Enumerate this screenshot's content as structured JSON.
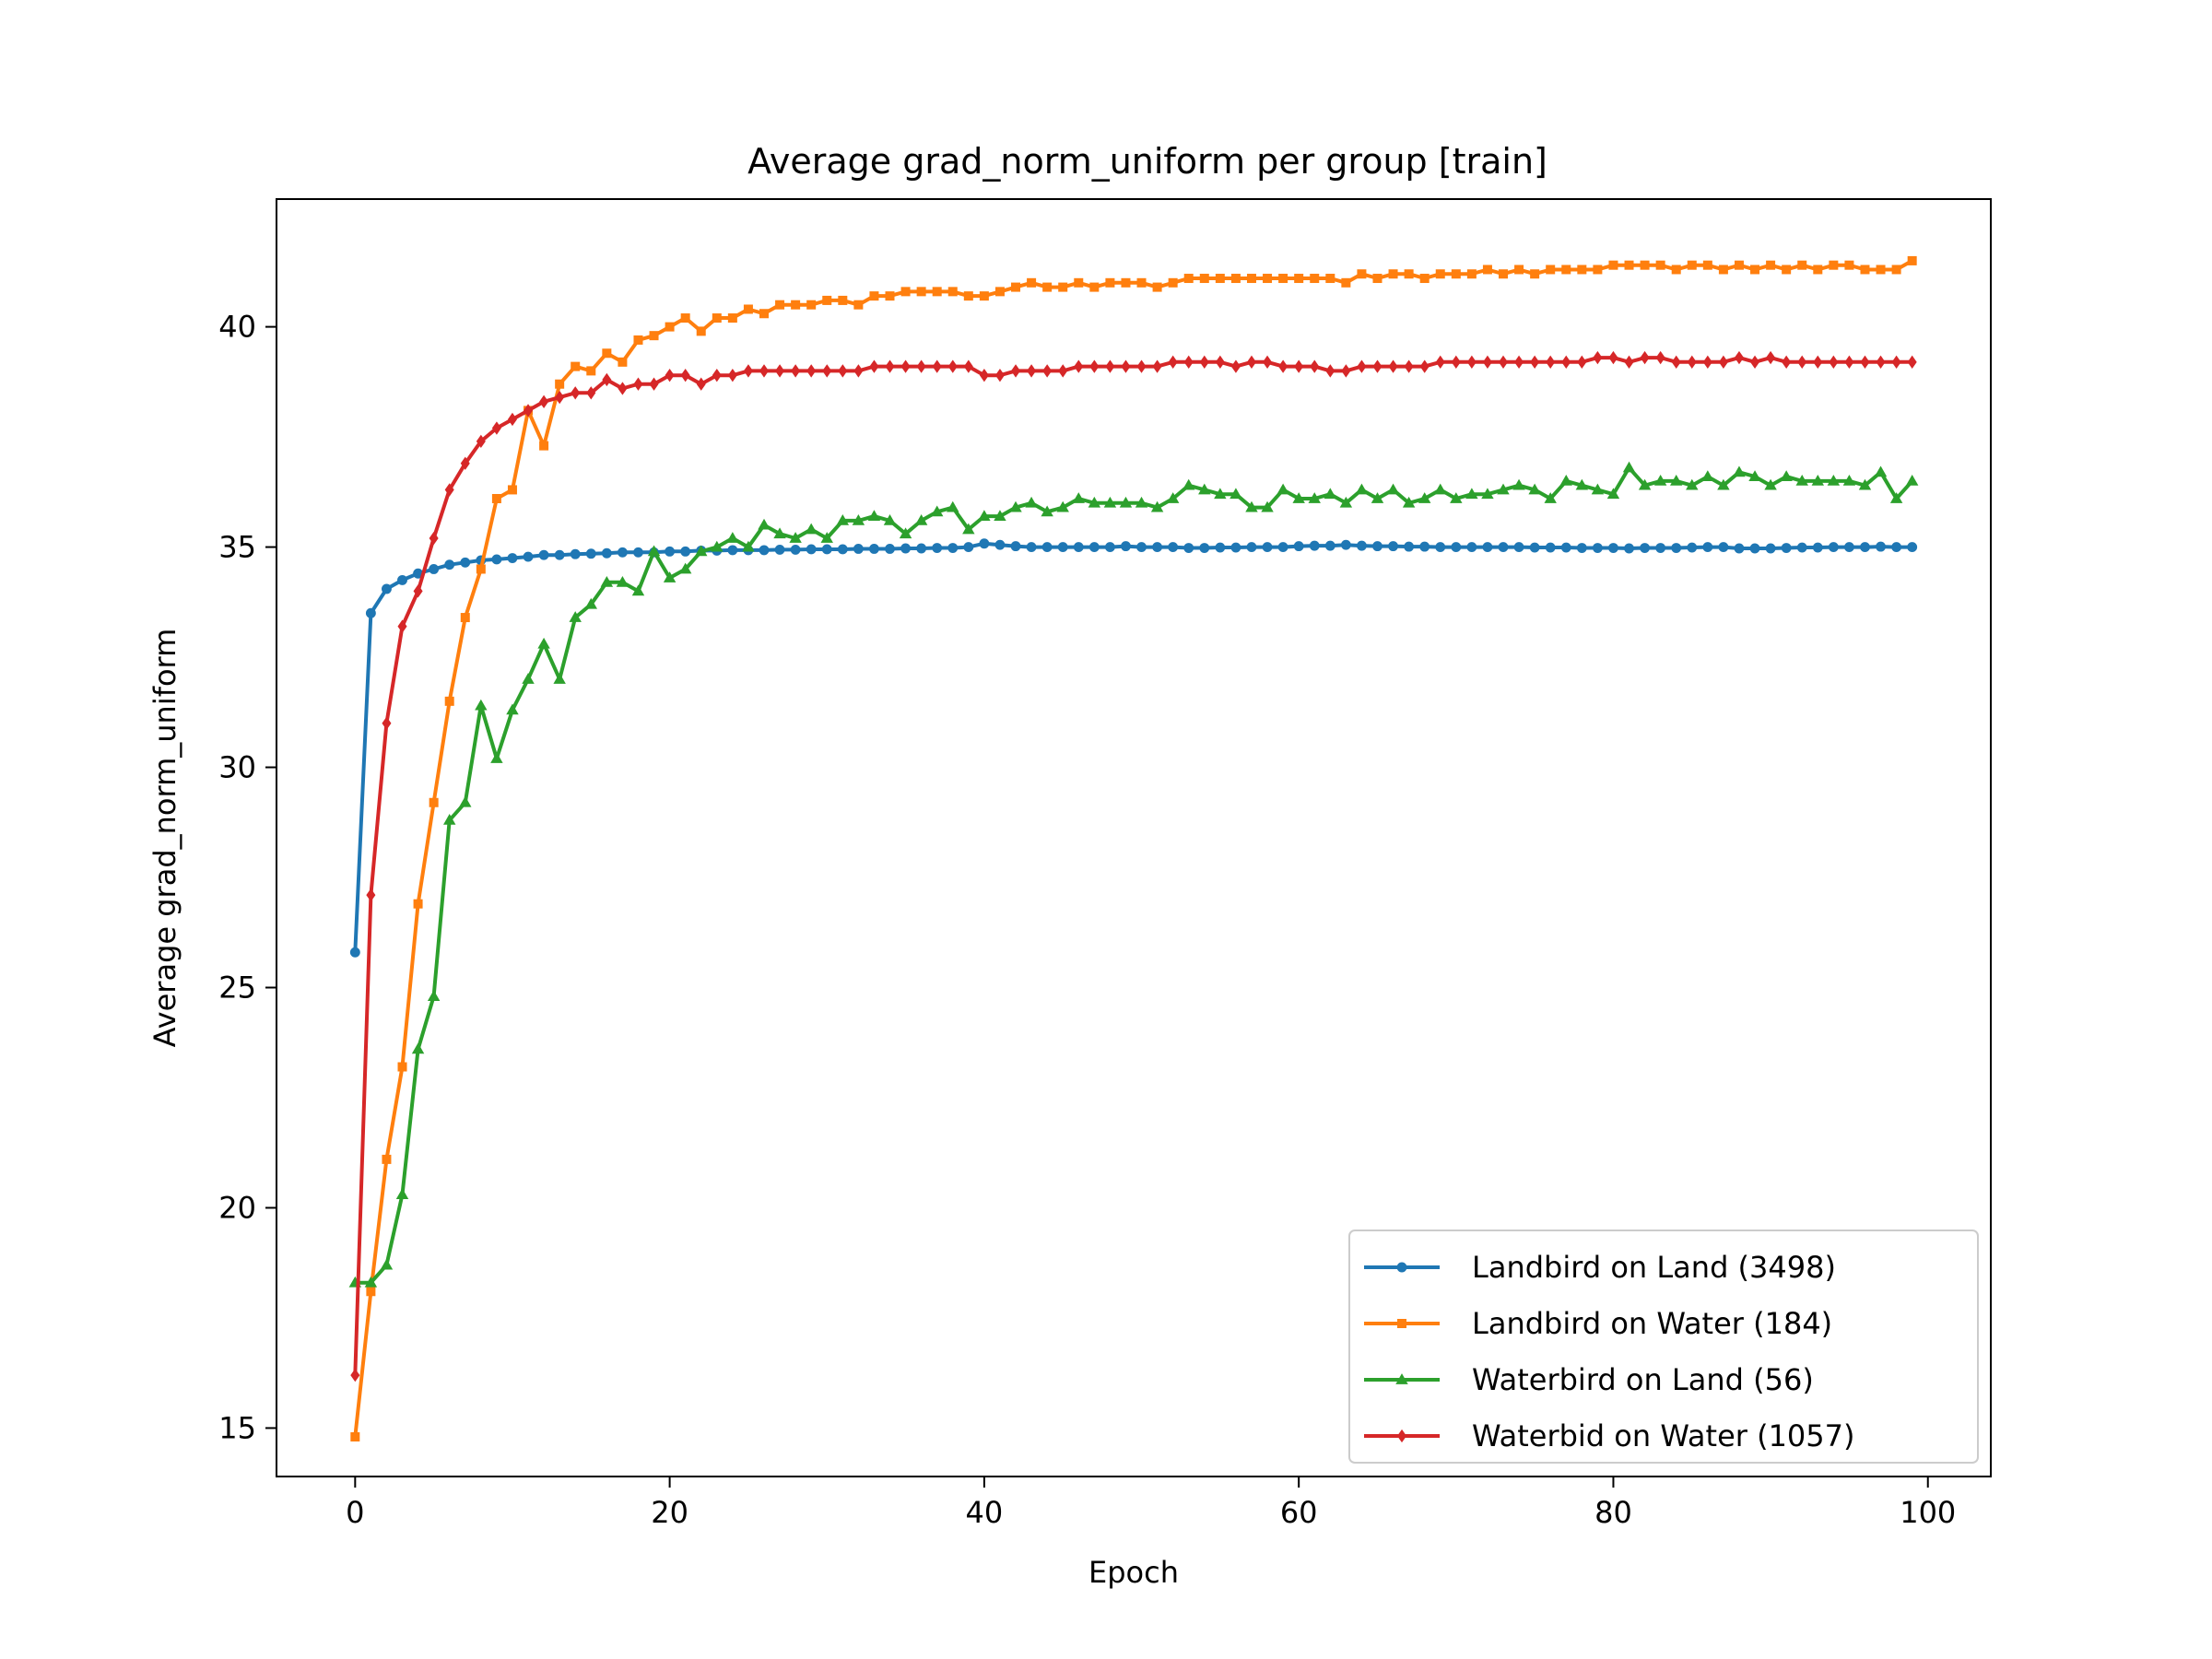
{
  "chart_data": {
    "type": "line",
    "title": "Average grad_norm_uniform per group [train]",
    "xlabel": "Epoch",
    "ylabel": "Average grad_norm_uniform",
    "xlim": [
      -5,
      104
    ],
    "ylim": [
      13.9,
      42.9
    ],
    "xticks": [
      0,
      20,
      40,
      60,
      80,
      100
    ],
    "yticks": [
      15,
      20,
      25,
      30,
      35,
      40
    ],
    "grid": false,
    "legend_position": "lower right",
    "x": [
      0,
      1,
      2,
      3,
      4,
      5,
      6,
      7,
      8,
      9,
      10,
      11,
      12,
      13,
      14,
      15,
      16,
      17,
      18,
      19,
      20,
      21,
      22,
      23,
      24,
      25,
      26,
      27,
      28,
      29,
      30,
      31,
      32,
      33,
      34,
      35,
      36,
      37,
      38,
      39,
      40,
      41,
      42,
      43,
      44,
      45,
      46,
      47,
      48,
      49,
      50,
      51,
      52,
      53,
      54,
      55,
      56,
      57,
      58,
      59,
      60,
      61,
      62,
      63,
      64,
      65,
      66,
      67,
      68,
      69,
      70,
      71,
      72,
      73,
      74,
      75,
      76,
      77,
      78,
      79,
      80,
      81,
      82,
      83,
      84,
      85,
      86,
      87,
      88,
      89,
      90,
      91,
      92,
      93,
      94,
      95,
      96,
      97,
      98,
      99
    ],
    "series": [
      {
        "name": "Landbird on Land (3498)",
        "color": "#1f77b4",
        "marker": "circle",
        "values": [
          25.8,
          33.5,
          34.05,
          34.25,
          34.4,
          34.5,
          34.6,
          34.65,
          34.7,
          34.72,
          34.75,
          34.78,
          34.82,
          34.82,
          34.84,
          34.85,
          34.86,
          34.88,
          34.88,
          34.88,
          34.9,
          34.9,
          34.92,
          34.92,
          34.93,
          34.93,
          34.93,
          34.94,
          34.94,
          34.95,
          34.95,
          34.95,
          34.96,
          34.96,
          34.96,
          34.97,
          34.97,
          34.98,
          34.98,
          35.0,
          35.08,
          35.05,
          35.02,
          35.0,
          35.0,
          35.0,
          35.0,
          35.0,
          35.0,
          35.02,
          35.0,
          35.0,
          35.0,
          34.98,
          34.98,
          34.99,
          34.99,
          35.0,
          35.0,
          35.0,
          35.02,
          35.03,
          35.03,
          35.05,
          35.03,
          35.02,
          35.02,
          35.01,
          35.01,
          35.0,
          35.0,
          35.0,
          35.0,
          35.0,
          35.0,
          34.99,
          34.99,
          34.99,
          34.98,
          34.98,
          34.98,
          34.97,
          34.98,
          34.98,
          34.98,
          34.99,
          35.0,
          35.0,
          34.97,
          34.97,
          34.97,
          34.98,
          34.99,
          34.99,
          35.0,
          35.0,
          35.0,
          35.01,
          35.0,
          35.0
        ]
      },
      {
        "name": "Landbird on Water (184)",
        "color": "#ff7f0e",
        "marker": "square",
        "values": [
          14.8,
          18.1,
          21.1,
          23.2,
          26.9,
          29.2,
          31.5,
          33.4,
          34.5,
          36.1,
          36.3,
          38.1,
          37.3,
          38.7,
          39.1,
          39.0,
          39.4,
          39.2,
          39.7,
          39.8,
          40.0,
          40.2,
          39.9,
          40.2,
          40.2,
          40.4,
          40.3,
          40.5,
          40.5,
          40.5,
          40.6,
          40.6,
          40.5,
          40.7,
          40.7,
          40.8,
          40.8,
          40.8,
          40.8,
          40.7,
          40.7,
          40.8,
          40.9,
          41.0,
          40.9,
          40.9,
          41.0,
          40.9,
          41.0,
          41.0,
          41.0,
          40.9,
          41.0,
          41.1,
          41.1,
          41.1,
          41.1,
          41.1,
          41.1,
          41.1,
          41.1,
          41.1,
          41.1,
          41.0,
          41.2,
          41.1,
          41.2,
          41.2,
          41.1,
          41.2,
          41.2,
          41.2,
          41.3,
          41.2,
          41.3,
          41.2,
          41.3,
          41.3,
          41.3,
          41.3,
          41.4,
          41.4,
          41.4,
          41.4,
          41.3,
          41.4,
          41.4,
          41.3,
          41.4,
          41.3,
          41.4,
          41.3,
          41.4,
          41.3,
          41.4,
          41.4,
          41.3,
          41.3,
          41.3,
          41.5
        ]
      },
      {
        "name": "Waterbird on Land (56)",
        "color": "#2ca02c",
        "marker": "triangle",
        "values": [
          18.3,
          18.3,
          18.7,
          20.3,
          23.6,
          24.8,
          28.8,
          29.2,
          31.4,
          30.2,
          31.3,
          32.0,
          32.8,
          32.0,
          33.4,
          33.7,
          34.2,
          34.2,
          34.0,
          34.9,
          34.3,
          34.5,
          34.9,
          35.0,
          35.2,
          35.0,
          35.5,
          35.3,
          35.2,
          35.4,
          35.2,
          35.6,
          35.6,
          35.7,
          35.6,
          35.3,
          35.6,
          35.8,
          35.9,
          35.4,
          35.7,
          35.7,
          35.9,
          36.0,
          35.8,
          35.9,
          36.1,
          36.0,
          36.0,
          36.0,
          36.0,
          35.9,
          36.1,
          36.4,
          36.3,
          36.2,
          36.2,
          35.9,
          35.9,
          36.3,
          36.1,
          36.1,
          36.2,
          36.0,
          36.3,
          36.1,
          36.3,
          36.0,
          36.1,
          36.3,
          36.1,
          36.2,
          36.2,
          36.3,
          36.4,
          36.3,
          36.1,
          36.5,
          36.4,
          36.3,
          36.2,
          36.8,
          36.4,
          36.5,
          36.5,
          36.4,
          36.6,
          36.4,
          36.7,
          36.6,
          36.4,
          36.6,
          36.5,
          36.5,
          36.5,
          36.5,
          36.4,
          36.7,
          36.1,
          36.5
        ]
      },
      {
        "name": "Waterbid on Water (1057)",
        "color": "#d62728",
        "marker": "diamond",
        "values": [
          16.2,
          27.1,
          31.0,
          33.2,
          34.0,
          35.2,
          36.3,
          36.9,
          37.4,
          37.7,
          37.9,
          38.1,
          38.3,
          38.4,
          38.5,
          38.5,
          38.8,
          38.6,
          38.7,
          38.7,
          38.9,
          38.9,
          38.7,
          38.9,
          38.9,
          39.0,
          39.0,
          39.0,
          39.0,
          39.0,
          39.0,
          39.0,
          39.0,
          39.1,
          39.1,
          39.1,
          39.1,
          39.1,
          39.1,
          39.1,
          38.9,
          38.9,
          39.0,
          39.0,
          39.0,
          39.0,
          39.1,
          39.1,
          39.1,
          39.1,
          39.1,
          39.1,
          39.2,
          39.2,
          39.2,
          39.2,
          39.1,
          39.2,
          39.2,
          39.1,
          39.1,
          39.1,
          39.0,
          39.0,
          39.1,
          39.1,
          39.1,
          39.1,
          39.1,
          39.2,
          39.2,
          39.2,
          39.2,
          39.2,
          39.2,
          39.2,
          39.2,
          39.2,
          39.2,
          39.3,
          39.3,
          39.2,
          39.3,
          39.3,
          39.2,
          39.2,
          39.2,
          39.2,
          39.3,
          39.2,
          39.3,
          39.2,
          39.2,
          39.2,
          39.2,
          39.2,
          39.2,
          39.2,
          39.2,
          39.2
        ]
      }
    ]
  }
}
